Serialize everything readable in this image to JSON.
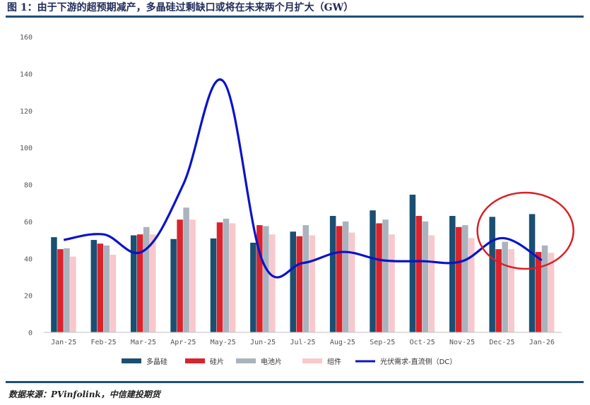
{
  "title": "图 1：由于下游的超预期减产，多晶硅过剩缺口或将在未来两个月扩大（GW）",
  "source": "数据来源：PVinfolink，中信建投期货",
  "chart_data": {
    "type": "bar",
    "categories": [
      "Jan-25",
      "Feb-25",
      "Mar-25",
      "Apr-25",
      "May-25",
      "Jun-25",
      "Jul-25",
      "Aug-25",
      "Sep-25",
      "Oct-25",
      "Nov-25",
      "Dec-25",
      "Jan-26"
    ],
    "ylim": [
      0,
      160
    ],
    "yticks": [
      0,
      20,
      40,
      60,
      80,
      100,
      120,
      140,
      160
    ],
    "series": [
      {
        "name": "多晶硅",
        "color": "#1b4f72",
        "values": [
          51.5,
          50,
          52.5,
          50.5,
          50.8,
          48.5,
          54.5,
          63,
          66,
          74.5,
          63,
          62.5,
          64
        ]
      },
      {
        "name": "硅片",
        "color": "#d9232d",
        "values": [
          45,
          48,
          53,
          61,
          59.5,
          58,
          52,
          57.5,
          59,
          63,
          57,
          45,
          43.5
        ]
      },
      {
        "name": "电池片",
        "color": "#aab3bd",
        "values": [
          45.5,
          47,
          57,
          67.5,
          61.5,
          57.5,
          58,
          60,
          61,
          60,
          58,
          49,
          47
        ]
      },
      {
        "name": "组件",
        "color": "#f8c8cc",
        "values": [
          41,
          42,
          53,
          61,
          59,
          53,
          52.5,
          54,
          53,
          52.5,
          51,
          45,
          43
        ]
      }
    ],
    "line": {
      "name": "光伏需求-直流侧（DC）",
      "color": "#0a14c8",
      "values": [
        50,
        53,
        44,
        80,
        136,
        38,
        37.5,
        43.5,
        39,
        38.5,
        38.5,
        51,
        39
      ]
    },
    "annotation": {
      "type": "red-ellipse",
      "around": [
        "Dec-25",
        "Jan-26"
      ],
      "color": "#d91f26"
    },
    "legend_position": "bottom",
    "grid": false
  }
}
